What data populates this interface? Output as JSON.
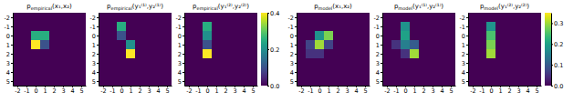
{
  "chart_data": [
    {
      "type": "heatmap",
      "title": "pempirical(x₁,x₂)",
      "x": [
        -2,
        -1,
        0,
        1,
        2,
        3,
        4,
        5
      ],
      "y": [
        -2,
        -1,
        0,
        1,
        2,
        3,
        4,
        5
      ],
      "values": [
        [
          0,
          0,
          0,
          0,
          0,
          0,
          0,
          0
        ],
        [
          0,
          0,
          0,
          0,
          0,
          0,
          0,
          0
        ],
        [
          0,
          0,
          0.25,
          0.25,
          0,
          0,
          0,
          0
        ],
        [
          0,
          0,
          0.4,
          0.1,
          0,
          0,
          0,
          0
        ],
        [
          0,
          0,
          0,
          0,
          0,
          0,
          0,
          0
        ],
        [
          0,
          0,
          0,
          0,
          0,
          0,
          0,
          0
        ],
        [
          0,
          0,
          0,
          0,
          0,
          0,
          0,
          0
        ],
        [
          0,
          0,
          0,
          0,
          0,
          0,
          0,
          0
        ]
      ],
      "xlim": [
        -2.5,
        5.5
      ],
      "ylim": [
        5.5,
        -2.5
      ],
      "xticks": [
        -2,
        -1,
        0,
        1,
        2,
        3,
        4,
        5
      ],
      "yticks": [
        -2,
        -1,
        0,
        1,
        2,
        3,
        4,
        5
      ],
      "color_range": [
        0,
        0.4
      ]
    },
    {
      "type": "heatmap",
      "title": "pempirical(y₁⁽¹⁾,y₂⁽¹⁾)",
      "x": [
        -2,
        -1,
        0,
        1,
        2,
        3,
        4,
        5
      ],
      "y": [
        -2,
        -1,
        0,
        1,
        2,
        3,
        4,
        5
      ],
      "values": [
        [
          0,
          0,
          0,
          0,
          0,
          0,
          0,
          0
        ],
        [
          0,
          0,
          0.25,
          0,
          0,
          0,
          0,
          0
        ],
        [
          0,
          0,
          0.1,
          0,
          0,
          0,
          0,
          0
        ],
        [
          0,
          0,
          0,
          0.2,
          0,
          0,
          0,
          0
        ],
        [
          0,
          0,
          0,
          0.4,
          0,
          0,
          0,
          0
        ],
        [
          0,
          0,
          0,
          0,
          0,
          0,
          0,
          0
        ],
        [
          0,
          0,
          0,
          0,
          0,
          0,
          0,
          0
        ],
        [
          0,
          0,
          0,
          0,
          0,
          0,
          0,
          0
        ]
      ],
      "xlim": [
        -2.5,
        5.5
      ],
      "ylim": [
        5.5,
        -2.5
      ],
      "xticks": [
        -2,
        -1,
        0,
        1,
        2,
        3,
        4,
        5
      ],
      "yticks": [
        -2,
        -1,
        0,
        1,
        2,
        3,
        4,
        5
      ],
      "color_range": [
        0,
        0.4
      ]
    },
    {
      "type": "heatmap",
      "title": "pempirical(y₁⁽²⁾,y₂⁽²⁾)",
      "x": [
        -2,
        -1,
        0,
        1,
        2,
        3,
        4,
        5
      ],
      "y": [
        -2,
        -1,
        0,
        1,
        2,
        3,
        4,
        5
      ],
      "values": [
        [
          0,
          0,
          0,
          0,
          0,
          0,
          0,
          0
        ],
        [
          0,
          0,
          0.25,
          0,
          0,
          0,
          0,
          0
        ],
        [
          0,
          0,
          0.2,
          0,
          0,
          0,
          0,
          0
        ],
        [
          0,
          0,
          0.1,
          0,
          0,
          0,
          0,
          0
        ],
        [
          0,
          0,
          0.4,
          0,
          0,
          0,
          0,
          0
        ],
        [
          0,
          0,
          0,
          0,
          0,
          0,
          0,
          0
        ],
        [
          0,
          0,
          0,
          0,
          0,
          0,
          0,
          0
        ],
        [
          0,
          0,
          0,
          0,
          0,
          0,
          0,
          0
        ]
      ],
      "xlim": [
        -2.5,
        5.5
      ],
      "ylim": [
        5.5,
        -2.5
      ],
      "xticks": [
        -2,
        -1,
        0,
        1,
        2,
        3,
        4,
        5
      ],
      "yticks": [
        -2,
        -1,
        0,
        1,
        2,
        3,
        4,
        5
      ],
      "color_range": [
        0,
        0.4
      ],
      "colorbar_ticks": [
        {
          "value": 0.0,
          "label": "0.0"
        },
        0.2,
        0.4
      ]
    },
    {
      "type": "heatmap",
      "title": "pmodel(x₁,x₂)",
      "x": [
        -2,
        -1,
        0,
        1,
        2,
        3,
        4,
        5
      ],
      "y": [
        -2,
        -1,
        0,
        1,
        2,
        3,
        4,
        5
      ],
      "values": [
        [
          0,
          0,
          0,
          0,
          0,
          0,
          0,
          0
        ],
        [
          0,
          0,
          0,
          0,
          0,
          0,
          0,
          0
        ],
        [
          0,
          0,
          0.18,
          0.28,
          0,
          0,
          0,
          0
        ],
        [
          0,
          0.07,
          0.3,
          0.07,
          0,
          0,
          0,
          0
        ],
        [
          0,
          0.05,
          0.05,
          0,
          0,
          0,
          0,
          0
        ],
        [
          0,
          0,
          0,
          0,
          0,
          0,
          0,
          0
        ],
        [
          0,
          0,
          0,
          0,
          0,
          0,
          0,
          0
        ],
        [
          0,
          0,
          0,
          0,
          0,
          0,
          0,
          0
        ]
      ],
      "xlim": [
        -2.5,
        5.5
      ],
      "ylim": [
        5.5,
        -2.5
      ],
      "xticks": [
        -2,
        -1,
        0,
        1,
        2,
        3,
        4,
        5
      ],
      "yticks": [
        -2,
        -1,
        0,
        1,
        2,
        3,
        4,
        5
      ],
      "color_range": [
        0,
        0.35
      ]
    },
    {
      "type": "heatmap",
      "title": "pmodel(y₁⁽¹⁾,y₂⁽¹⁾)",
      "x": [
        -2,
        -1,
        0,
        1,
        2,
        3,
        4,
        5
      ],
      "y": [
        -2,
        -1,
        0,
        1,
        2,
        3,
        4,
        5
      ],
      "values": [
        [
          0,
          0,
          0,
          0,
          0,
          0,
          0,
          0
        ],
        [
          0,
          0,
          0.18,
          0,
          0,
          0,
          0,
          0
        ],
        [
          0,
          0,
          0.2,
          0,
          0,
          0,
          0,
          0
        ],
        [
          0,
          0.05,
          0.15,
          0.1,
          0,
          0,
          0,
          0
        ],
        [
          0,
          0,
          0.05,
          0.3,
          0,
          0,
          0,
          0
        ],
        [
          0,
          0,
          0,
          0,
          0,
          0,
          0,
          0
        ],
        [
          0,
          0,
          0,
          0,
          0,
          0,
          0,
          0
        ],
        [
          0,
          0,
          0,
          0,
          0,
          0,
          0,
          0
        ]
      ],
      "xlim": [
        -2.5,
        5.5
      ],
      "ylim": [
        5.5,
        -2.5
      ],
      "xticks": [
        -2,
        -1,
        0,
        1,
        2,
        3,
        4,
        5
      ],
      "yticks": [
        -2,
        -1,
        0,
        1,
        2,
        3,
        4,
        5
      ],
      "color_range": [
        0,
        0.35
      ]
    },
    {
      "type": "heatmap",
      "title": "pmodel(y₁⁽²⁾,y₂⁽²⁾)",
      "x": [
        -2,
        -1,
        0,
        1,
        2,
        3,
        4,
        5
      ],
      "y": [
        -2,
        -1,
        0,
        1,
        2,
        3,
        4,
        5
      ],
      "values": [
        [
          0,
          0,
          0,
          0,
          0,
          0,
          0,
          0
        ],
        [
          0,
          0,
          0.18,
          0,
          0,
          0,
          0,
          0
        ],
        [
          0,
          0,
          0.25,
          0,
          0,
          0,
          0,
          0
        ],
        [
          0,
          0,
          0.28,
          0,
          0,
          0,
          0,
          0
        ],
        [
          0,
          0,
          0.3,
          0,
          0,
          0,
          0,
          0
        ],
        [
          0,
          0,
          0,
          0,
          0,
          0,
          0,
          0
        ],
        [
          0,
          0,
          0,
          0,
          0,
          0,
          0,
          0
        ],
        [
          0,
          0,
          0,
          0,
          0,
          0,
          0,
          0
        ]
      ],
      "xlim": [
        -2.5,
        5.5
      ],
      "ylim": [
        5.5,
        -2.5
      ],
      "xticks": [
        -2,
        -1,
        0,
        1,
        2,
        3,
        4,
        5
      ],
      "yticks": [
        -2,
        -1,
        0,
        1,
        2,
        3,
        4,
        5
      ],
      "color_range": [
        0,
        0.35
      ],
      "colorbar_ticks": [
        {
          "value": 0.0,
          "label": "0.0"
        },
        0.1,
        0.2,
        0.3
      ]
    }
  ]
}
